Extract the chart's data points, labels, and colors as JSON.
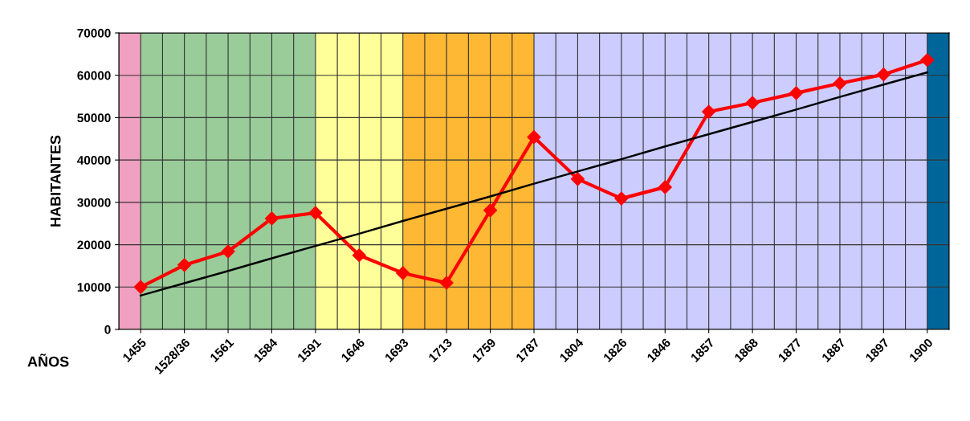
{
  "chart_data": {
    "type": "line",
    "ylabel": "HABITANTES",
    "xlabel": "AÑOS",
    "categories": [
      "1455",
      "1528/36",
      "1561",
      "1584",
      "1591",
      "1646",
      "1693",
      "1713",
      "1759",
      "1787",
      "1804",
      "1826",
      "1846",
      "1857",
      "1868",
      "1877",
      "1887",
      "1897",
      "1900"
    ],
    "series": [
      {
        "color": "#ff0000",
        "marker": "diamond",
        "values": [
          10000,
          15200,
          18400,
          26200,
          27500,
          17500,
          13300,
          11000,
          28100,
          45400,
          35500,
          30900,
          33600,
          51400,
          53500,
          55800,
          58100,
          60200,
          63600
        ]
      },
      {
        "color": "#000000",
        "marker": "none",
        "values": [
          8000,
          10900,
          13800,
          16800,
          19700,
          22600,
          25600,
          28500,
          31400,
          34400,
          37300,
          40200,
          43200,
          46100,
          49000,
          51900,
          54900,
          57800,
          60700
        ]
      }
    ],
    "bands": [
      {
        "axis": "x",
        "from": "1455",
        "to": "1455",
        "color": "#f0a0c0"
      },
      {
        "axis": "x",
        "from": "1455",
        "to": "1591",
        "color": "#99cc99"
      },
      {
        "axis": "x",
        "from": "1591",
        "to": "1693",
        "color": "#ffff99"
      },
      {
        "axis": "x",
        "from": "1693",
        "to": "1787",
        "color": "#ffb833"
      },
      {
        "axis": "x",
        "from": "1787",
        "to": "1900",
        "color": "#ccccff"
      },
      {
        "axis": "x",
        "from": "1900",
        "to": "1900",
        "color": "#006699"
      }
    ],
    "ylim": [
      0,
      70000
    ],
    "yticks": [
      0,
      10000,
      20000,
      30000,
      40000,
      50000,
      60000,
      70000
    ],
    "grid": true
  }
}
